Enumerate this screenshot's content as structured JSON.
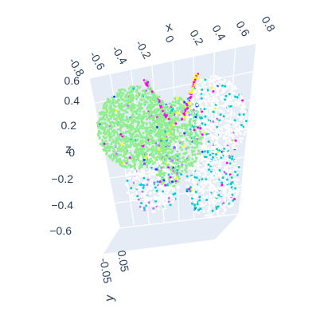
{
  "chart_data": {
    "type": "scatter",
    "subtype": "scatter3d",
    "title": "",
    "axes": {
      "x": {
        "label": "x",
        "ticks": [
          "-0.8",
          "-0.6",
          "-0.4",
          "-0.2",
          "0",
          "0.2",
          "0.4",
          "0.6",
          "0.8"
        ],
        "range": [
          -0.8,
          0.8
        ]
      },
      "y": {
        "label": "y",
        "ticks": [
          "0.05",
          "-0.05"
        ],
        "range": [
          -0.05,
          0.05
        ]
      },
      "z": {
        "label": "z",
        "ticks": [
          "0.6",
          "0.4",
          "0.2",
          "0",
          "−0.2",
          "−0.4",
          "−0.6"
        ],
        "range": [
          -0.6,
          0.6
        ]
      }
    },
    "grid": true,
    "legend": "none",
    "background": "#e5ecf6",
    "shape": "butterfly point cloud",
    "colors": {
      "left_wing": "#90ee90",
      "right_wing": "#ffffff",
      "accent_magenta": "#ff00ff",
      "accent_cyan": "#00ced1",
      "accent_yellow": "#ffff00",
      "accent_blue": "#1e3cff",
      "accent_purple": "#b57bff"
    }
  }
}
